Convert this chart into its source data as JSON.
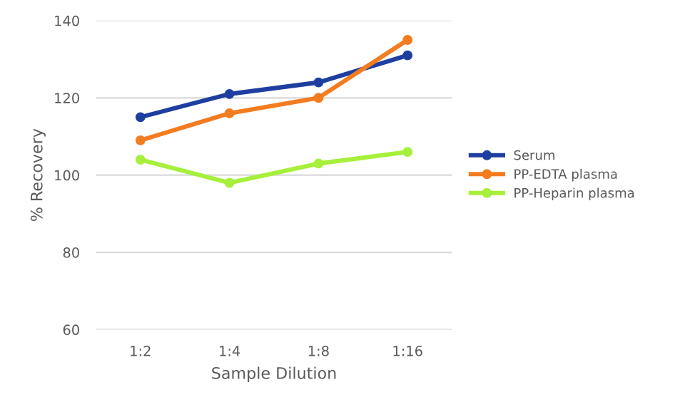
{
  "chart_data": {
    "type": "line",
    "xlabel": "Sample Dilution",
    "ylabel": "% Recovery",
    "categories": [
      "1:2",
      "1:4",
      "1:8",
      "1:16"
    ],
    "series": [
      {
        "name": "Serum",
        "color": "#1f3fa0",
        "values": [
          115,
          121,
          124,
          131
        ]
      },
      {
        "name": "PP-EDTA plasma",
        "color": "#f47c20",
        "values": [
          109,
          116,
          120,
          135
        ]
      },
      {
        "name": "PP-Heparin plasma",
        "color": "#a6f03c",
        "values": [
          104,
          98,
          103,
          106
        ]
      }
    ],
    "ylim": [
      60,
      140
    ],
    "yticks": [
      60,
      80,
      100,
      120,
      140
    ],
    "grid": "y",
    "legend": "right",
    "marker": "circle",
    "line_style": "solid"
  }
}
